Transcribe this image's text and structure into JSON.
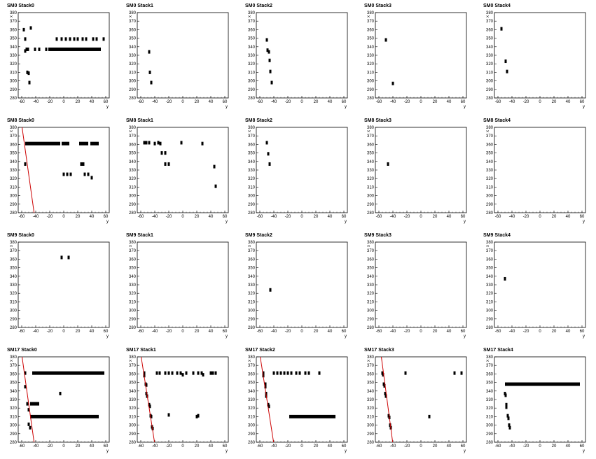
{
  "colors": {
    "background": "#ffffff",
    "frame": "#000000",
    "points": "#000000",
    "track_line": "#cc0000"
  },
  "axes": {
    "xlabel": "y",
    "ylabel": "x",
    "x_ticks": [
      "-60",
      "-40",
      "-20",
      "0",
      "20",
      "40",
      "60"
    ],
    "y_ticks": [
      "280",
      "290",
      "300",
      "310",
      "320",
      "330",
      "340",
      "350",
      "360",
      "370",
      "380"
    ]
  },
  "chart_data": [
    {
      "type": "scatter",
      "title": "SM0 Stack0",
      "xlim": [
        -65,
        65
      ],
      "ylim": [
        280,
        380
      ],
      "points": [
        [
          -57,
          360
        ],
        [
          -47,
          362
        ],
        [
          -55,
          349
        ],
        [
          -53,
          337
        ],
        [
          -55,
          335
        ],
        [
          -51,
          337
        ],
        [
          -52,
          310
        ],
        [
          -50,
          309
        ],
        [
          -49,
          298
        ],
        [
          -41,
          337
        ],
        [
          -35,
          337
        ],
        [
          -25,
          337
        ],
        [
          -10,
          349
        ],
        [
          -3,
          349
        ],
        [
          3,
          349
        ],
        [
          9,
          349
        ],
        [
          15,
          349
        ],
        [
          20,
          349
        ],
        [
          27,
          349
        ],
        [
          32,
          349
        ],
        [
          42,
          349
        ],
        [
          47,
          349
        ],
        [
          57,
          349
        ]
      ],
      "bands": [
        {
          "x_from": -22,
          "x_to": 53,
          "y": 337
        }
      ],
      "lines": []
    },
    {
      "type": "scatter",
      "title": "SM0 Stack1",
      "xlim": [
        -65,
        65
      ],
      "ylim": [
        280,
        380
      ],
      "points": [
        [
          -48,
          334
        ],
        [
          -47,
          310
        ],
        [
          -45,
          298
        ]
      ],
      "bands": [],
      "lines": []
    },
    {
      "type": "scatter",
      "title": "SM0 Stack2",
      "xlim": [
        -65,
        65
      ],
      "ylim": [
        280,
        380
      ],
      "points": [
        [
          -50,
          348
        ],
        [
          -49,
          336
        ],
        [
          -47,
          334
        ],
        [
          -46,
          324
        ],
        [
          -45,
          311
        ],
        [
          -43,
          298
        ]
      ],
      "bands": [],
      "lines": []
    },
    {
      "type": "scatter",
      "title": "SM0 Stack3",
      "xlim": [
        -65,
        65
      ],
      "ylim": [
        280,
        380
      ],
      "points": [
        [
          -50,
          348
        ],
        [
          -40,
          297
        ]
      ],
      "bands": [],
      "lines": []
    },
    {
      "type": "scatter",
      "title": "SM0 Stack4",
      "xlim": [
        -65,
        65
      ],
      "ylim": [
        280,
        380
      ],
      "points": [
        [
          -55,
          361
        ],
        [
          -49,
          323
        ],
        [
          -47,
          311
        ]
      ],
      "bands": [],
      "lines": []
    },
    {
      "type": "scatter",
      "title": "SM8 Stack0",
      "xlim": [
        -65,
        65
      ],
      "ylim": [
        280,
        380
      ],
      "points": [
        [
          -55,
          337
        ],
        [
          0,
          325
        ],
        [
          5,
          325
        ],
        [
          10,
          325
        ],
        [
          25,
          337
        ],
        [
          28,
          337
        ],
        [
          30,
          325
        ],
        [
          35,
          325
        ],
        [
          40,
          321
        ]
      ],
      "bands": [
        {
          "x_from": -55,
          "x_to": -5,
          "y": 361
        },
        {
          "x_from": -3,
          "x_to": 8,
          "y": 361
        },
        {
          "x_from": 22,
          "x_to": 35,
          "y": 361
        },
        {
          "x_from": 38,
          "x_to": 50,
          "y": 361
        }
      ],
      "lines": [
        {
          "x1": -60,
          "y1": 383,
          "x2": -42,
          "y2": 278
        }
      ]
    },
    {
      "type": "scatter",
      "title": "SM8 Stack1",
      "xlim": [
        -65,
        65
      ],
      "ylim": [
        280,
        380
      ],
      "points": [
        [
          -55,
          362
        ],
        [
          -52,
          362
        ],
        [
          -48,
          362
        ],
        [
          -40,
          361
        ],
        [
          -35,
          362
        ],
        [
          -32,
          361
        ],
        [
          -30,
          350
        ],
        [
          -25,
          350
        ],
        [
          -25,
          337
        ],
        [
          -20,
          337
        ],
        [
          -2,
          362
        ],
        [
          28,
          361
        ],
        [
          45,
          334
        ],
        [
          47,
          311
        ]
      ],
      "bands": [],
      "lines": []
    },
    {
      "type": "scatter",
      "title": "SM8 Stack2",
      "xlim": [
        -65,
        65
      ],
      "ylim": [
        280,
        380
      ],
      "points": [
        [
          -50,
          362
        ],
        [
          -48,
          349
        ],
        [
          -46,
          337
        ]
      ],
      "bands": [],
      "lines": []
    },
    {
      "type": "scatter",
      "title": "SM8 Stack3",
      "xlim": [
        -65,
        65
      ],
      "ylim": [
        280,
        380
      ],
      "points": [
        [
          -47,
          337
        ]
      ],
      "bands": [],
      "lines": []
    },
    {
      "type": "scatter",
      "title": "SM8 Stack4",
      "xlim": [
        -65,
        65
      ],
      "ylim": [
        280,
        380
      ],
      "points": [],
      "bands": [],
      "lines": []
    },
    {
      "type": "scatter",
      "title": "SM9 Stack0",
      "xlim": [
        -65,
        65
      ],
      "ylim": [
        280,
        380
      ],
      "points": [
        [
          -3,
          362
        ],
        [
          7,
          362
        ]
      ],
      "bands": [],
      "lines": []
    },
    {
      "type": "scatter",
      "title": "SM9 Stack1",
      "xlim": [
        -65,
        65
      ],
      "ylim": [
        280,
        380
      ],
      "points": [],
      "bands": [],
      "lines": []
    },
    {
      "type": "scatter",
      "title": "SM9 Stack2",
      "xlim": [
        -65,
        65
      ],
      "ylim": [
        280,
        380
      ],
      "points": [
        [
          -45,
          324
        ]
      ],
      "bands": [],
      "lines": []
    },
    {
      "type": "scatter",
      "title": "SM9 Stack3",
      "xlim": [
        -65,
        65
      ],
      "ylim": [
        280,
        380
      ],
      "points": [],
      "bands": [],
      "lines": []
    },
    {
      "type": "scatter",
      "title": "SM9 Stack4",
      "xlim": [
        -65,
        65
      ],
      "ylim": [
        280,
        380
      ],
      "points": [
        [
          -50,
          337
        ]
      ],
      "bands": [],
      "lines": []
    },
    {
      "type": "scatter",
      "title": "SM17 Stack0",
      "xlim": [
        -65,
        65
      ],
      "ylim": [
        280,
        380
      ],
      "points": [
        [
          -55,
          361
        ],
        [
          -55,
          345
        ],
        [
          -52,
          325
        ],
        [
          -50,
          318
        ],
        [
          -50,
          301
        ],
        [
          -48,
          297
        ],
        [
          -5,
          337
        ]
      ],
      "bands": [
        {
          "x_from": -45,
          "x_to": 58,
          "y": 361
        },
        {
          "x_from": -48,
          "x_to": 50,
          "y": 310
        },
        {
          "x_from": -48,
          "x_to": -35,
          "y": 325
        }
      ],
      "lines": [
        {
          "x1": -60,
          "y1": 383,
          "x2": -42,
          "y2": 278
        }
      ]
    },
    {
      "type": "scatter",
      "title": "SM17 Stack1",
      "xlim": [
        -65,
        65
      ],
      "ylim": [
        280,
        380
      ],
      "points": [
        [
          -55,
          361
        ],
        [
          -55,
          358
        ],
        [
          -53,
          348
        ],
        [
          -52,
          347
        ],
        [
          -52,
          337
        ],
        [
          -51,
          334
        ],
        [
          -48,
          324
        ],
        [
          -47,
          322
        ],
        [
          -46,
          311
        ],
        [
          -45,
          310
        ],
        [
          -44,
          298
        ],
        [
          -43,
          296
        ],
        [
          -37,
          361
        ],
        [
          -33,
          361
        ],
        [
          -25,
          361
        ],
        [
          -20,
          312
        ],
        [
          -20,
          361
        ],
        [
          -15,
          361
        ],
        [
          -8,
          361
        ],
        [
          -3,
          361
        ],
        [
          0,
          359
        ],
        [
          5,
          361
        ],
        [
          15,
          361
        ],
        [
          20,
          310
        ],
        [
          22,
          311
        ],
        [
          22,
          361
        ],
        [
          27,
          361
        ],
        [
          29,
          359
        ],
        [
          40,
          361
        ],
        [
          43,
          361
        ],
        [
          47,
          361
        ]
      ],
      "bands": [],
      "lines": [
        {
          "x1": -60,
          "y1": 383,
          "x2": -40,
          "y2": 278
        }
      ]
    },
    {
      "type": "scatter",
      "title": "SM17 Stack2",
      "xlim": [
        -65,
        65
      ],
      "ylim": [
        280,
        380
      ],
      "points": [
        [
          -55,
          361
        ],
        [
          -55,
          358
        ],
        [
          -52,
          348
        ],
        [
          -52,
          345
        ],
        [
          -51,
          337
        ],
        [
          -51,
          334
        ],
        [
          -48,
          324
        ],
        [
          -47,
          322
        ],
        [
          -40,
          361
        ],
        [
          -35,
          361
        ],
        [
          -30,
          361
        ],
        [
          -25,
          361
        ],
        [
          -20,
          361
        ],
        [
          -15,
          361
        ],
        [
          -8,
          361
        ],
        [
          -3,
          361
        ],
        [
          5,
          361
        ],
        [
          10,
          361
        ],
        [
          25,
          361
        ]
      ],
      "bands": [
        {
          "x_from": -18,
          "x_to": 48,
          "y": 310
        }
      ],
      "lines": [
        {
          "x1": -60,
          "y1": 383,
          "x2": -40,
          "y2": 278
        }
      ]
    },
    {
      "type": "scatter",
      "title": "SM17 Stack3",
      "xlim": [
        -65,
        65
      ],
      "ylim": [
        280,
        380
      ],
      "points": [
        [
          -55,
          361
        ],
        [
          -54,
          359
        ],
        [
          -53,
          348
        ],
        [
          -52,
          346
        ],
        [
          -51,
          337
        ],
        [
          -50,
          334
        ],
        [
          -46,
          311
        ],
        [
          -45,
          309
        ],
        [
          -44,
          300
        ],
        [
          -43,
          297
        ],
        [
          -22,
          361
        ],
        [
          12,
          310
        ],
        [
          48,
          361
        ],
        [
          58,
          361
        ]
      ],
      "bands": [],
      "lines": [
        {
          "x1": -57,
          "y1": 383,
          "x2": -40,
          "y2": 278
        }
      ]
    },
    {
      "type": "scatter",
      "title": "SM17 Stack4",
      "xlim": [
        -65,
        65
      ],
      "ylim": [
        280,
        380
      ],
      "points": [
        [
          -50,
          337
        ],
        [
          -49,
          335
        ],
        [
          -48,
          324
        ],
        [
          -48,
          321
        ],
        [
          -46,
          311
        ],
        [
          -45,
          308
        ],
        [
          -44,
          300
        ],
        [
          -43,
          297
        ]
      ],
      "bands": [
        {
          "x_from": -50,
          "x_to": 57,
          "y": 348
        }
      ],
      "lines": []
    }
  ]
}
